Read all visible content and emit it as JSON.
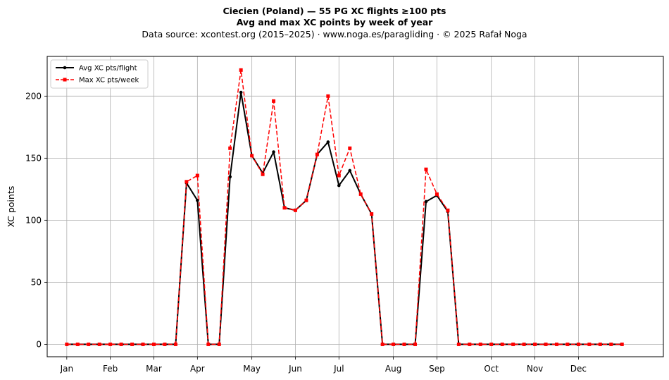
{
  "chart_data": {
    "type": "line",
    "title": "Ciecien (Poland)  —  55 PG XC flights ≥100 pts",
    "subtitle": "Avg and max XC points by week of year",
    "source": "Data source: xcontest.org (2015–2025)  ·  www.noga.es/paragliding  ·  © 2025 Rafał Noga",
    "xlabel": "",
    "ylabel": "XC points",
    "xlim": [
      -1.8,
      54.8
    ],
    "ylim": [
      -10,
      232
    ],
    "yticks": [
      0,
      50,
      100,
      150,
      200
    ],
    "x_ticks": [
      {
        "label": "Jan",
        "x": 0
      },
      {
        "label": "Feb",
        "x": 4
      },
      {
        "label": "Mar",
        "x": 8
      },
      {
        "label": "Apr",
        "x": 12
      },
      {
        "label": "May",
        "x": 17
      },
      {
        "label": "Jun",
        "x": 21
      },
      {
        "label": "Jul",
        "x": 25
      },
      {
        "label": "Aug",
        "x": 30
      },
      {
        "label": "Sep",
        "x": 34
      },
      {
        "label": "Oct",
        "x": 39
      },
      {
        "label": "Nov",
        "x": 43
      },
      {
        "label": "Dec",
        "x": 47
      }
    ],
    "grid": true,
    "legend_position": "top-left",
    "x": [
      0,
      1,
      2,
      3,
      4,
      5,
      6,
      7,
      8,
      9,
      10,
      11,
      12,
      13,
      14,
      15,
      16,
      17,
      18,
      19,
      20,
      21,
      22,
      23,
      24,
      25,
      26,
      27,
      28,
      29,
      30,
      31,
      32,
      33,
      34,
      35,
      36,
      37,
      38,
      39,
      40,
      41,
      42,
      43,
      44,
      45,
      46,
      47,
      48,
      49,
      50,
      51
    ],
    "series": [
      {
        "name": "Avg XC pts/flight",
        "color": "#000000",
        "style": "solid-circle",
        "values": [
          0,
          0,
          0,
          0,
          0,
          0,
          0,
          0,
          0,
          0,
          0,
          130,
          116,
          0,
          0,
          135,
          203,
          152,
          138,
          155,
          110,
          108,
          116,
          153,
          163,
          128,
          140,
          121,
          105,
          0,
          0,
          0,
          0,
          115,
          120,
          107,
          0,
          0,
          0,
          0,
          0,
          0,
          0,
          0,
          0,
          0,
          0,
          0,
          0,
          0,
          0,
          0
        ]
      },
      {
        "name": "Max XC pts/week",
        "color": "#ff0000",
        "style": "dashed-square",
        "values": [
          0,
          0,
          0,
          0,
          0,
          0,
          0,
          0,
          0,
          0,
          0,
          131,
          136,
          0,
          0,
          158,
          221,
          152,
          137,
          196,
          110,
          108,
          116,
          153,
          200,
          136,
          158,
          121,
          105,
          0,
          0,
          0,
          0,
          141,
          121,
          108,
          0,
          0,
          0,
          0,
          0,
          0,
          0,
          0,
          0,
          0,
          0,
          0,
          0,
          0,
          0,
          0
        ]
      }
    ]
  }
}
